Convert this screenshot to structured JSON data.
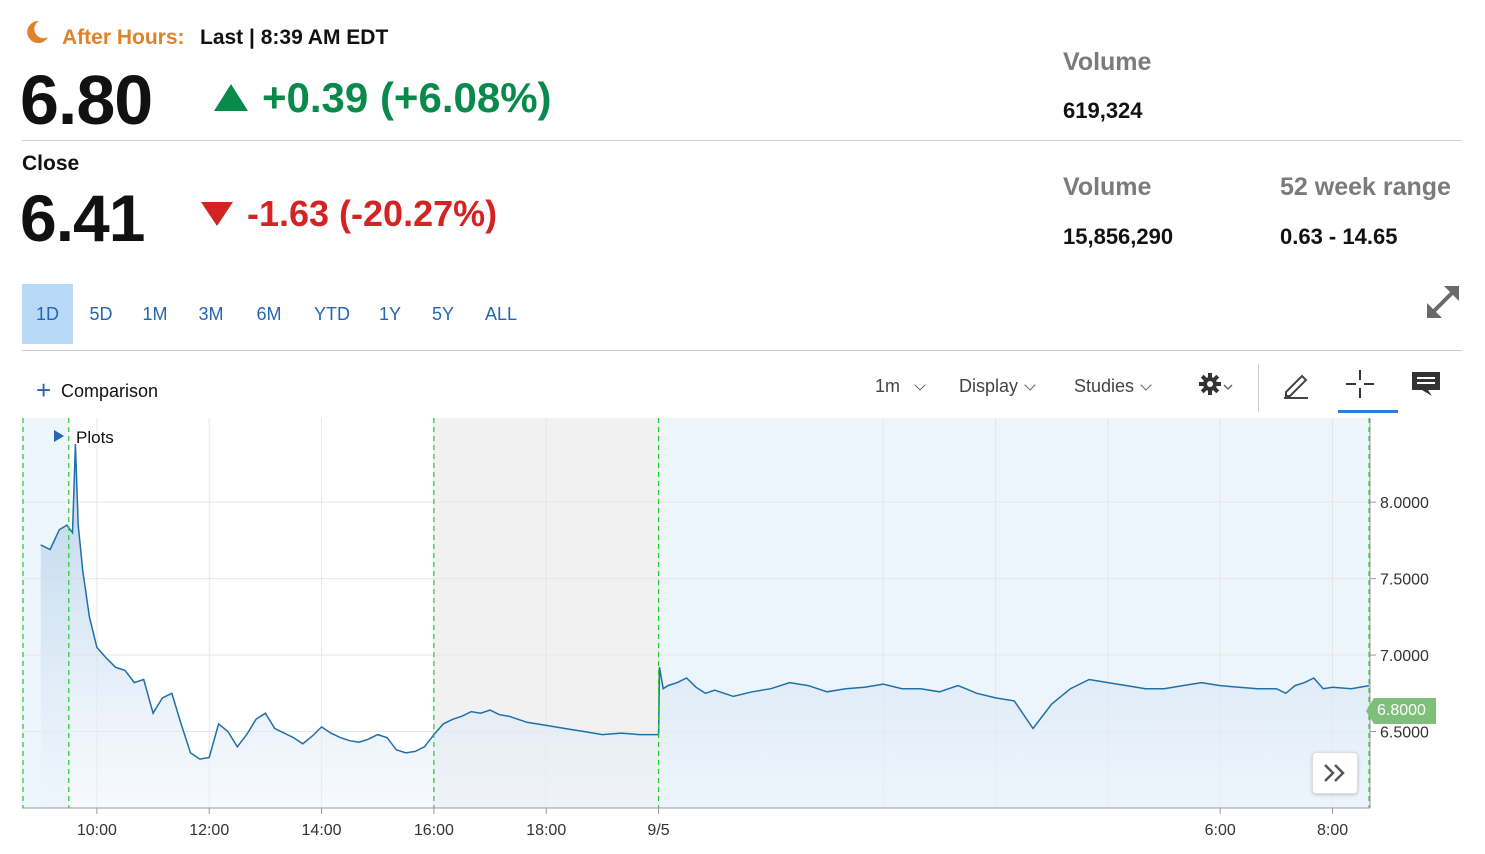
{
  "header": {
    "after_hours_label": "After Hours:",
    "after_hours_time": "Last | 8:39 AM EDT",
    "after_hours_price": "6.80",
    "after_hours_change": "+0.39 (+6.08%)",
    "close_label": "Close",
    "close_price": "6.41",
    "close_change": "-1.63 (-20.27%)"
  },
  "stats": {
    "ah_volume_label": "Volume",
    "ah_volume_value": "619,324",
    "volume_label": "Volume",
    "volume_value": "15,856,290",
    "range_label": "52 week range",
    "range_value": "0.63 - 14.65"
  },
  "ranges": [
    "1D",
    "5D",
    "1M",
    "3M",
    "6M",
    "YTD",
    "1Y",
    "5Y",
    "ALL"
  ],
  "active_range": "1D",
  "toolbar": {
    "comparison": "Comparison",
    "interval": "1m",
    "display": "Display",
    "studies": "Studies"
  },
  "chart_data": {
    "type": "area",
    "plots_label": "Plots",
    "x_ticks": [
      "10:00",
      "12:00",
      "14:00",
      "16:00",
      "18:00",
      "9/5",
      "6:00",
      "8:00"
    ],
    "y_ticks": [
      "8.0000",
      "7.5000",
      "7.0000",
      "6.5000"
    ],
    "ylim": [
      6.0,
      8.55
    ],
    "last_value_label": "6.8000",
    "series": [
      {
        "x": [
          "9:00",
          "9:10",
          "9:20",
          "9:28",
          "9:34",
          "9:37",
          "9:40",
          "9:45",
          "9:52",
          "10:00",
          "10:10",
          "10:20",
          "10:30",
          "10:40",
          "10:50",
          "11:00",
          "11:10",
          "11:20",
          "11:30",
          "11:40",
          "11:50",
          "12:00",
          "12:10",
          "12:20",
          "12:30",
          "12:40",
          "12:50",
          "13:00",
          "13:10",
          "13:20",
          "13:30",
          "13:40",
          "13:50",
          "14:00",
          "14:10",
          "14:20",
          "14:30",
          "14:40",
          "14:50",
          "15:00",
          "15:10",
          "15:20",
          "15:30",
          "15:40",
          "15:50",
          "16:00",
          "16:10",
          "16:20",
          "16:30",
          "16:40",
          "16:50",
          "17:00",
          "17:10",
          "17:20",
          "17:30",
          "17:40",
          "17:50",
          "18:00",
          "18:20",
          "18:40",
          "19:00",
          "19:20",
          "19:40",
          "20:00",
          "20:01",
          "20:05",
          "20:10",
          "20:20",
          "20:30",
          "20:40",
          "20:50",
          "21:00",
          "21:20",
          "21:40",
          "22:00",
          "22:20",
          "22:40",
          "23:00",
          "23:20",
          "23:40",
          "0:00",
          "0:20",
          "0:40",
          "1:00",
          "1:20",
          "1:40",
          "2:00",
          "2:20",
          "2:40",
          "3:00",
          "3:20",
          "3:40",
          "4:00",
          "4:20",
          "4:40",
          "5:00",
          "5:20",
          "5:40",
          "6:00",
          "6:20",
          "6:40",
          "7:00",
          "7:10",
          "7:20",
          "7:30",
          "7:40",
          "7:50",
          "8:00",
          "8:20",
          "8:39"
        ],
        "values": [
          7.72,
          7.69,
          7.82,
          7.85,
          7.8,
          8.38,
          7.85,
          7.55,
          7.25,
          7.05,
          6.98,
          6.92,
          6.9,
          6.82,
          6.84,
          6.62,
          6.72,
          6.75,
          6.55,
          6.36,
          6.32,
          6.33,
          6.55,
          6.5,
          6.4,
          6.48,
          6.58,
          6.62,
          6.52,
          6.49,
          6.46,
          6.42,
          6.47,
          6.53,
          6.49,
          6.46,
          6.44,
          6.43,
          6.45,
          6.48,
          6.46,
          6.38,
          6.36,
          6.37,
          6.4,
          6.48,
          6.55,
          6.58,
          6.6,
          6.63,
          6.62,
          6.64,
          6.61,
          6.6,
          6.58,
          6.56,
          6.55,
          6.54,
          6.52,
          6.5,
          6.48,
          6.49,
          6.48,
          6.48,
          6.92,
          6.78,
          6.8,
          6.82,
          6.85,
          6.79,
          6.75,
          6.77,
          6.73,
          6.76,
          6.78,
          6.82,
          6.8,
          6.76,
          6.78,
          6.79,
          6.81,
          6.78,
          6.78,
          6.76,
          6.8,
          6.75,
          6.72,
          6.7,
          6.52,
          6.68,
          6.78,
          6.84,
          6.82,
          6.8,
          6.78,
          6.78,
          6.8,
          6.82,
          6.8,
          6.79,
          6.78,
          6.78,
          6.75,
          6.8,
          6.82,
          6.85,
          6.78,
          6.79,
          6.78,
          6.8
        ]
      }
    ]
  }
}
